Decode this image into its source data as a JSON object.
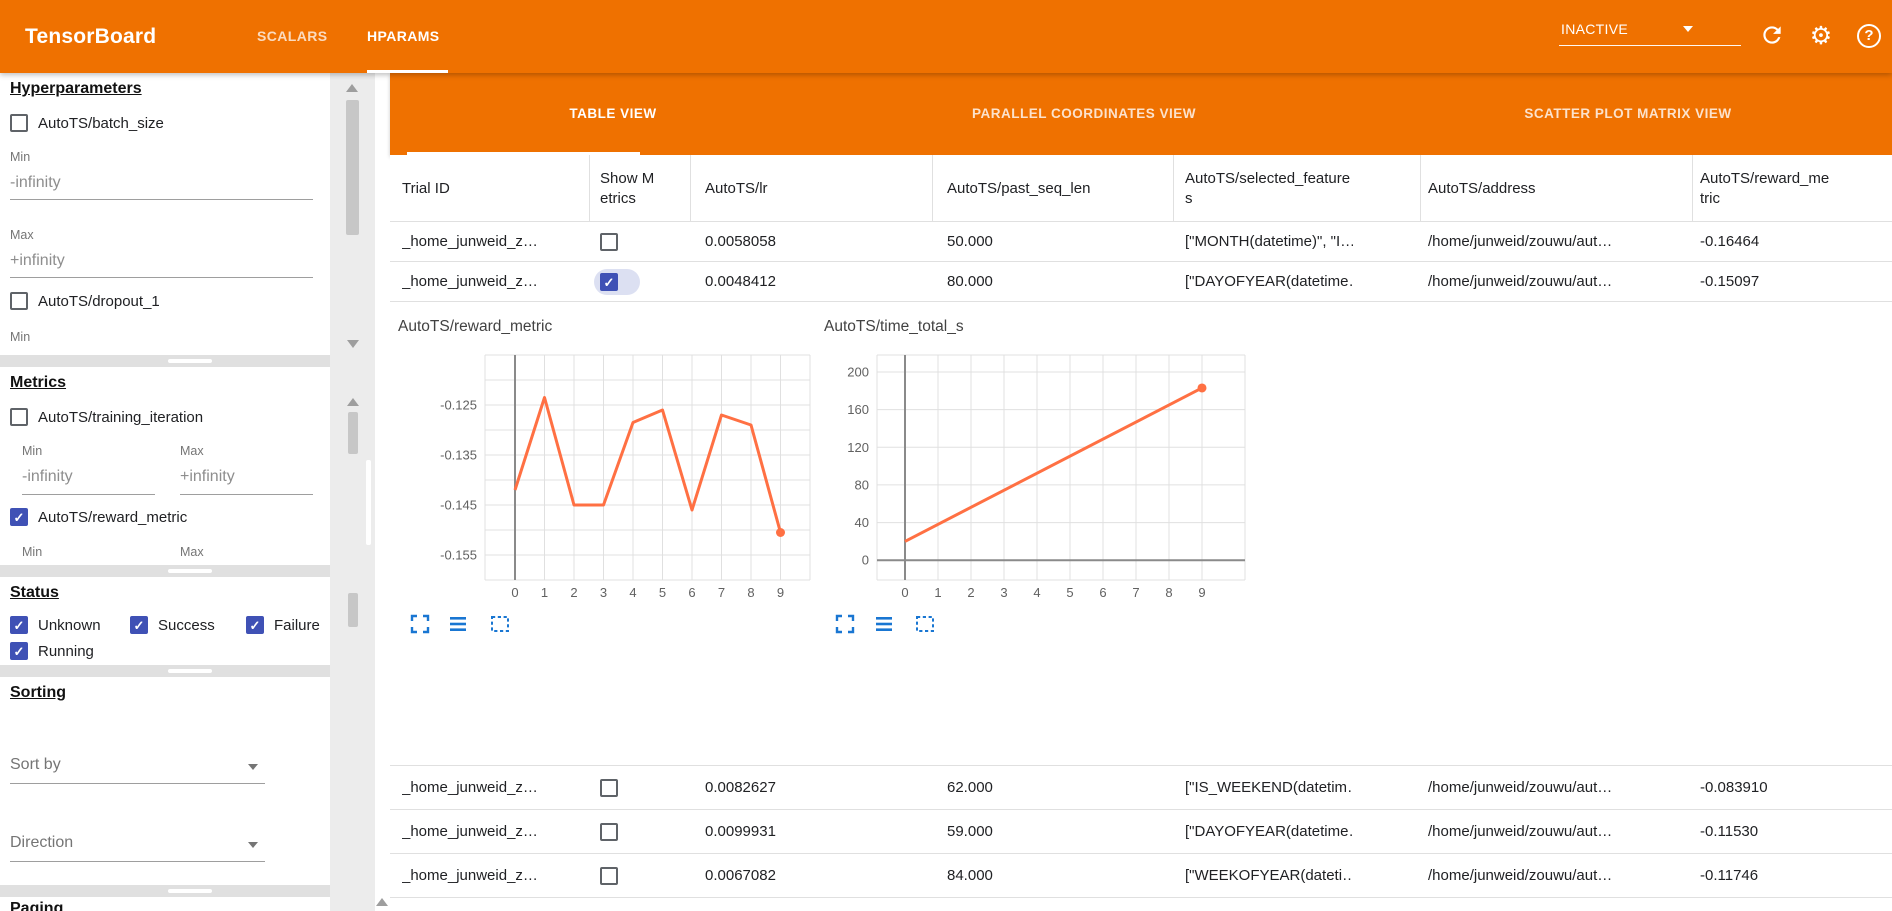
{
  "app_bar": {
    "title": "TensorBoard",
    "nav_tabs": [
      {
        "label": "SCALARS",
        "active": false
      },
      {
        "label": "HPARAMS",
        "active": true
      }
    ],
    "status_select": {
      "value": "INACTIVE"
    },
    "icons": [
      "reload-icon",
      "settings-gear-icon",
      "help-icon"
    ]
  },
  "sidebar": {
    "hyperparameters": {
      "heading": "Hyperparameters",
      "item1": {
        "label": "AutoTS/batch_size",
        "checked": false
      },
      "item1_min_label": "Min",
      "item1_min_value": "-infinity",
      "item1_max_label": "Max",
      "item1_max_value": "+infinity",
      "item2": {
        "label": "AutoTS/dropout_1",
        "checked": false
      },
      "item2_min_label": "Min"
    },
    "metrics": {
      "heading": "Metrics",
      "item1": {
        "label": "AutoTS/training_iteration",
        "checked": false
      },
      "item1_min_label": "Min",
      "item1_max_label": "Max",
      "item1_min_value": "-infinity",
      "item1_max_value": "+infinity",
      "item2": {
        "label": "AutoTS/reward_metric",
        "checked": true
      },
      "item2_min_label": "Min",
      "item2_max_label": "Max"
    },
    "status": {
      "heading": "Status",
      "options": [
        {
          "label": "Unknown",
          "checked": true
        },
        {
          "label": "Success",
          "checked": true
        },
        {
          "label": "Failure",
          "checked": true
        },
        {
          "label": "Running",
          "checked": true
        }
      ]
    },
    "sorting": {
      "heading": "Sorting",
      "sort_by_placeholder": "Sort by",
      "direction_placeholder": "Direction"
    },
    "paging": {
      "heading": "Paging"
    }
  },
  "main": {
    "view_tabs": [
      {
        "label": "TABLE VIEW",
        "active": true
      },
      {
        "label": "PARALLEL COORDINATES VIEW",
        "active": false
      },
      {
        "label": "SCATTER PLOT MATRIX VIEW",
        "active": false
      }
    ],
    "table": {
      "columns": [
        "Trial ID",
        "Show Metrics",
        "AutoTS/lr",
        "AutoTS/past_seq_len",
        "AutoTS/selected_features",
        "AutoTS/address",
        "AutoTS/reward_metric"
      ],
      "rows": [
        {
          "trial_id": "_home_junweid_z…",
          "show_metrics": false,
          "lr": "0.0058058",
          "past_seq_len": "50.000",
          "selected_features": "[\"MONTH(datetime)\", \"I…",
          "address": "/home/junweid/zouwu/aut…",
          "reward_metric": "-0.16464",
          "expanded": false
        },
        {
          "trial_id": "_home_junweid_z…",
          "show_metrics": true,
          "lr": "0.0048412",
          "past_seq_len": "80.000",
          "selected_features": "[\"DAYOFYEAR(datetime…",
          "address": "/home/junweid/zouwu/aut…",
          "reward_metric": "-0.15097",
          "expanded": true
        },
        {
          "trial_id": "_home_junweid_z…",
          "show_metrics": false,
          "lr": "0.0082627",
          "past_seq_len": "62.000",
          "selected_features": "[\"IS_WEEKEND(datetim…",
          "address": "/home/junweid/zouwu/aut…",
          "reward_metric": "-0.083910",
          "expanded": false
        },
        {
          "trial_id": "_home_junweid_z…",
          "show_metrics": false,
          "lr": "0.0099931",
          "past_seq_len": "59.000",
          "selected_features": "[\"DAYOFYEAR(datetime…",
          "address": "/home/junweid/zouwu/aut…",
          "reward_metric": "-0.11530",
          "expanded": false
        },
        {
          "trial_id": "_home_junweid_z…",
          "show_metrics": false,
          "lr": "0.0067082",
          "past_seq_len": "84.000",
          "selected_features": "[\"WEEKOFYEAR(dateti…",
          "address": "/home/junweid/zouwu/aut…",
          "reward_metric": "-0.11746",
          "expanded": false
        }
      ]
    },
    "chart_toolbar_icons": [
      "maximize-icon",
      "data-table-icon",
      "selection-box-icon"
    ]
  },
  "chart_data": [
    {
      "type": "line",
      "title": "AutoTS/reward_metric",
      "x": [
        0,
        1,
        2,
        3,
        4,
        5,
        6,
        7,
        8,
        9
      ],
      "values": [
        -0.142,
        -0.1235,
        -0.145,
        -0.145,
        -0.1285,
        -0.126,
        -0.146,
        -0.127,
        -0.129,
        -0.1505
      ],
      "xticks": [
        0,
        1,
        2,
        3,
        4,
        5,
        6,
        7,
        8,
        9
      ],
      "yticks": [
        -0.125,
        -0.135,
        -0.145,
        -0.155
      ],
      "ylim": [
        -0.16,
        -0.115
      ],
      "grid": true,
      "legend": "none",
      "line_color": "#ff7043",
      "end_marker": true
    },
    {
      "type": "line",
      "title": "AutoTS/time_total_s",
      "x": [
        0,
        9
      ],
      "values": [
        20,
        183
      ],
      "xticks": [
        0,
        1,
        2,
        3,
        4,
        5,
        6,
        7,
        8,
        9
      ],
      "yticks": [
        0,
        40,
        80,
        120,
        160,
        200
      ],
      "ylim": [
        -21,
        218
      ],
      "grid": true,
      "legend": "none",
      "line_color": "#ff7043",
      "end_marker": true
    }
  ],
  "colors": {
    "app_bar_orange": "#ef7100",
    "accent_indigo": "#3f51b5",
    "chart_line_orange": "#ff7043",
    "chart_icon_blue": "#1976d2"
  }
}
